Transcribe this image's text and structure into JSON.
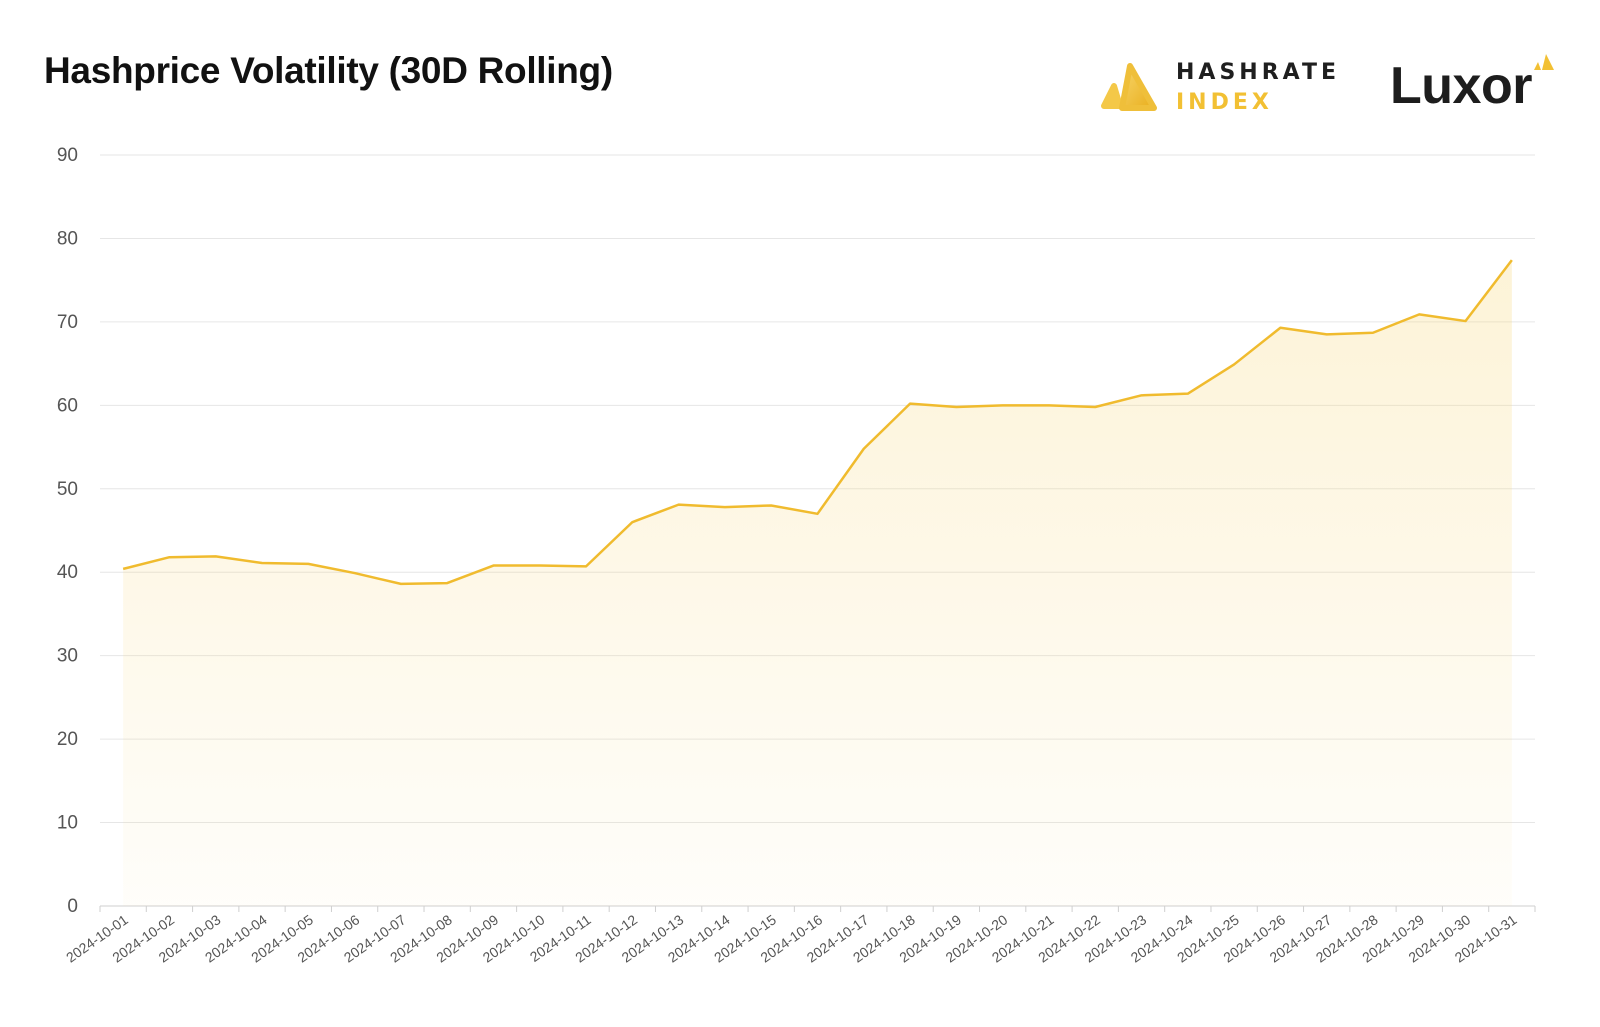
{
  "title": "Hashprice Volatility (30D Rolling)",
  "brand": {
    "hashrate_top": "HASHRATE",
    "hashrate_bottom": "INDEX",
    "luxor": "Luxor",
    "accent": "#f2c033",
    "dark": "#1d1d1d"
  },
  "chart_data": {
    "type": "area",
    "title": "Hashprice Volatility (30D Rolling)",
    "xlabel": "",
    "ylabel": "",
    "ylim": [
      0,
      90
    ],
    "yticks": [
      0,
      10,
      20,
      30,
      40,
      50,
      60,
      70,
      80,
      90
    ],
    "grid": true,
    "line_color": "#f0bb2e",
    "fill_color": "#f7d77a",
    "categories": [
      "2024-10-01",
      "2024-10-02",
      "2024-10-03",
      "2024-10-04",
      "2024-10-05",
      "2024-10-06",
      "2024-10-07",
      "2024-10-08",
      "2024-10-09",
      "2024-10-10",
      "2024-10-11",
      "2024-10-12",
      "2024-10-13",
      "2024-10-14",
      "2024-10-15",
      "2024-10-16",
      "2024-10-17",
      "2024-10-18",
      "2024-10-19",
      "2024-10-20",
      "2024-10-21",
      "2024-10-22",
      "2024-10-23",
      "2024-10-24",
      "2024-10-25",
      "2024-10-26",
      "2024-10-27",
      "2024-10-28",
      "2024-10-29",
      "2024-10-30",
      "2024-10-31"
    ],
    "values": [
      40.4,
      41.8,
      41.9,
      41.1,
      41.0,
      39.9,
      38.6,
      38.7,
      40.8,
      40.8,
      40.7,
      46.0,
      48.1,
      47.8,
      48.0,
      47.0,
      54.8,
      60.2,
      59.8,
      60.0,
      60.0,
      59.8,
      61.2,
      61.4,
      64.9,
      69.3,
      68.5,
      68.7,
      70.9,
      70.1,
      77.4
    ]
  }
}
